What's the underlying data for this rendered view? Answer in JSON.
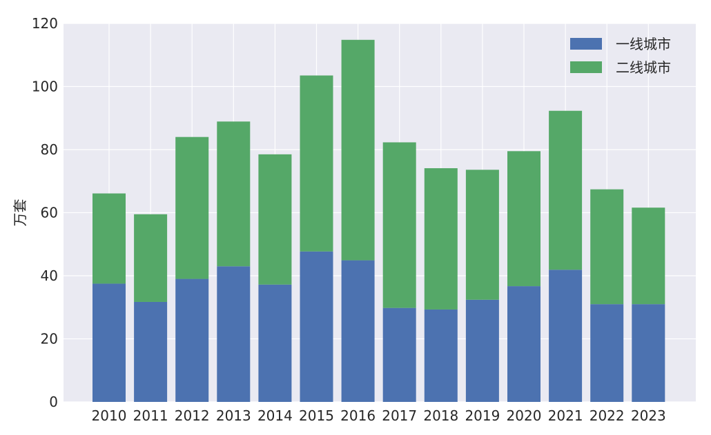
{
  "chart_data": {
    "type": "bar",
    "stacked": true,
    "categories": [
      "2010",
      "2011",
      "2012",
      "2013",
      "2014",
      "2015",
      "2016",
      "2017",
      "2018",
      "2019",
      "2020",
      "2021",
      "2022",
      "2023"
    ],
    "series": [
      {
        "name": "一线城市",
        "color": "#4c72b0",
        "values": [
          37.5,
          31.7,
          39.0,
          43.0,
          37.2,
          47.7,
          44.9,
          29.8,
          29.3,
          32.4,
          36.7,
          41.9,
          31.0,
          31.0
        ]
      },
      {
        "name": "二线城市",
        "color": "#55a868",
        "values": [
          28.6,
          27.8,
          45.0,
          45.9,
          41.3,
          55.8,
          69.9,
          52.5,
          44.8,
          41.2,
          42.8,
          50.4,
          36.4,
          30.6
        ]
      }
    ],
    "ylabel": "万套",
    "xlabel": "",
    "title": "",
    "ylim": [
      0,
      120
    ],
    "yticks": [
      0,
      20,
      40,
      60,
      80,
      100,
      120
    ],
    "grid": true,
    "legend_position": "top-right",
    "background": "#eaeaf2"
  }
}
